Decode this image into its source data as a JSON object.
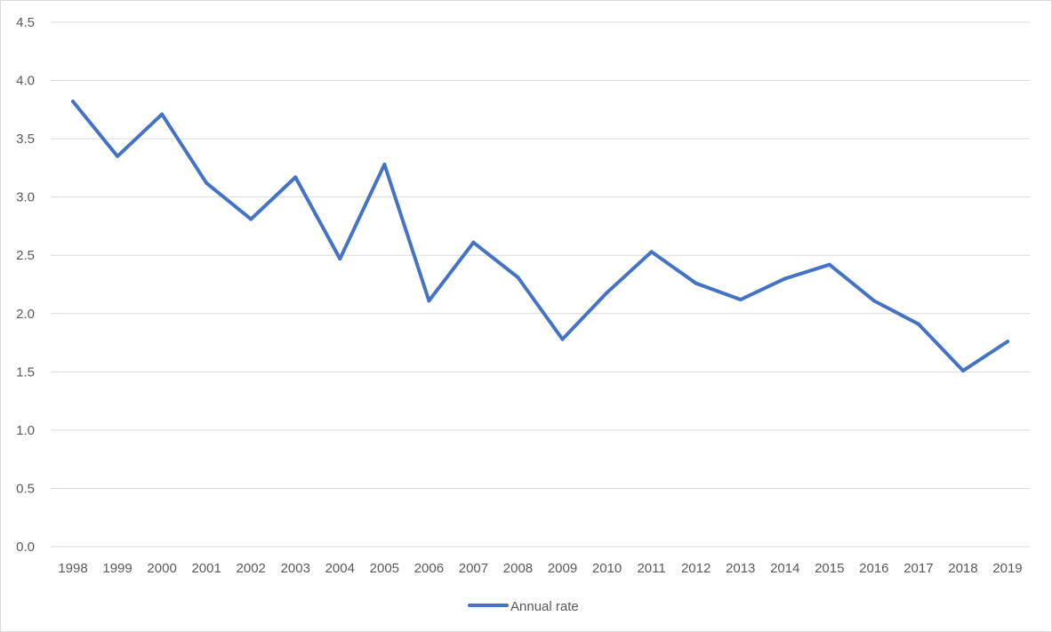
{
  "chart_data": {
    "type": "line",
    "title": "",
    "xlabel": "",
    "ylabel": "",
    "ylim": [
      0,
      4.5
    ],
    "ytick_step": 0.5,
    "grid": true,
    "legend_position": "bottom",
    "categories": [
      "1998",
      "1999",
      "2000",
      "2001",
      "2002",
      "2003",
      "2004",
      "2005",
      "2006",
      "2007",
      "2008",
      "2009",
      "2010",
      "2011",
      "2012",
      "2013",
      "2014",
      "2015",
      "2016",
      "2017",
      "2018",
      "2019"
    ],
    "yticks": [
      "0.0",
      "0.5",
      "1.0",
      "1.5",
      "2.0",
      "2.5",
      "3.0",
      "3.5",
      "4.0",
      "4.5"
    ],
    "series": [
      {
        "name": "Annual rate",
        "color": "#4472c4",
        "values": [
          3.82,
          3.35,
          3.71,
          3.12,
          2.81,
          3.17,
          2.47,
          3.28,
          2.11,
          2.61,
          2.31,
          1.78,
          2.18,
          2.53,
          2.26,
          2.12,
          2.3,
          2.42,
          2.11,
          1.91,
          1.51,
          1.76
        ]
      }
    ]
  }
}
